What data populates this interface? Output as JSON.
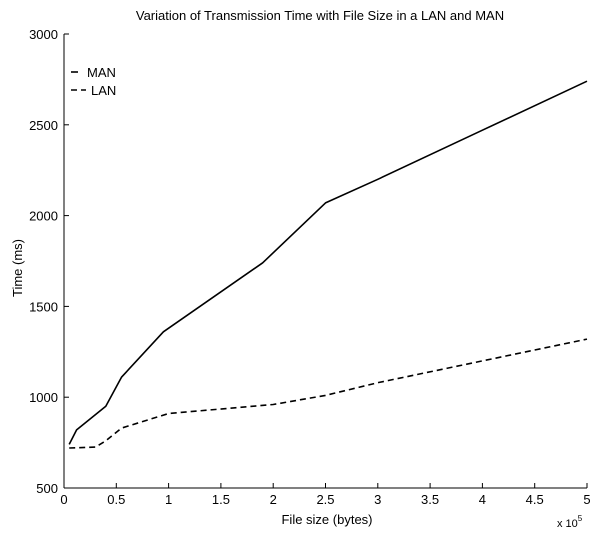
{
  "chart_data": {
    "type": "line",
    "title": "Variation of Transmission Time with File Size in a LAN and MAN",
    "xlabel": "File size (bytes)",
    "ylabel": "Time (ms)",
    "x_multiplier_base": "x 10",
    "x_multiplier_exp": "5",
    "xlim": [
      0,
      5
    ],
    "ylim": [
      500,
      3000
    ],
    "xticks": [
      {
        "value": 0,
        "label": "0"
      },
      {
        "value": 0.5,
        "label": "0.5"
      },
      {
        "value": 1,
        "label": "1"
      },
      {
        "value": 1.5,
        "label": "1.5"
      },
      {
        "value": 2,
        "label": "2"
      },
      {
        "value": 2.5,
        "label": "2.5"
      },
      {
        "value": 3,
        "label": "3"
      },
      {
        "value": 3.5,
        "label": "3.5"
      },
      {
        "value": 4,
        "label": "4"
      },
      {
        "value": 4.5,
        "label": "4.5"
      },
      {
        "value": 5,
        "label": "5"
      }
    ],
    "yticks": [
      {
        "value": 500,
        "label": "500"
      },
      {
        "value": 1000,
        "label": "1000"
      },
      {
        "value": 1500,
        "label": "1500"
      },
      {
        "value": 2000,
        "label": "2000"
      },
      {
        "value": 2500,
        "label": "2500"
      },
      {
        "value": 3000,
        "label": "3000"
      }
    ],
    "grid": false,
    "legend_position": "top-left",
    "series": [
      {
        "name": "MAN",
        "style": "solid",
        "color": "#000000",
        "x": [
          0.05,
          0.12,
          0.4,
          0.55,
          0.95,
          1.9,
          2.5,
          3.0,
          4.0,
          5.0
        ],
        "y": [
          740,
          820,
          950,
          1110,
          1360,
          1740,
          2070,
          2200,
          2470,
          2740
        ]
      },
      {
        "name": "LAN",
        "style": "dashed",
        "color": "#000000",
        "x": [
          0.05,
          0.3,
          0.4,
          0.55,
          1.0,
          2.0,
          2.5,
          3.0,
          4.0,
          5.0
        ],
        "y": [
          720,
          725,
          760,
          830,
          910,
          960,
          1010,
          1080,
          1200,
          1320
        ]
      }
    ]
  }
}
